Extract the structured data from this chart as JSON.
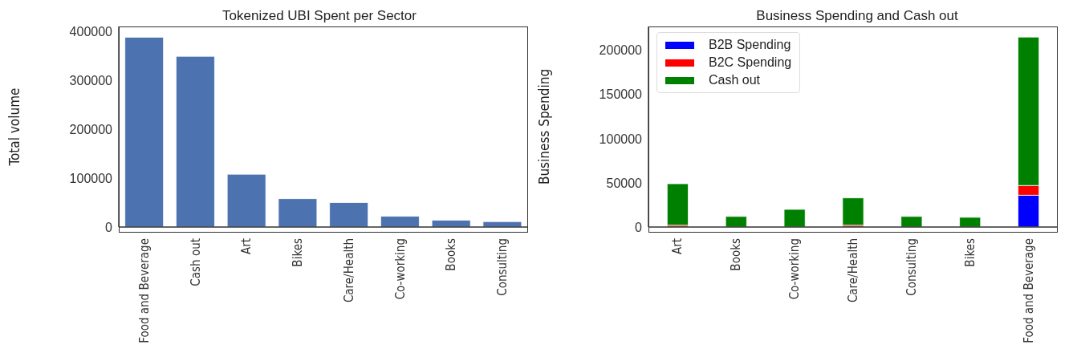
{
  "chart_data": [
    {
      "type": "bar",
      "title": "Tokenized UBI Spent per Sector",
      "ylabel": "Total volume",
      "categories": [
        "Food and Beverage",
        "Cash out",
        "Art",
        "Bikes",
        "Care/Health",
        "Co-working",
        "Books",
        "Consulting"
      ],
      "values": [
        388000,
        349000,
        108000,
        58000,
        50000,
        22000,
        14000,
        11000
      ],
      "color": "#4c72b0",
      "ylim": [
        0,
        410000
      ],
      "yticks": [
        0,
        100000,
        200000,
        300000,
        400000
      ],
      "grid": false
    },
    {
      "type": "bar",
      "title": "Business Spending and Cash out",
      "ylabel": "Business Spending",
      "categories": [
        "Art",
        "Books",
        "Co-working",
        "Care/Health",
        "Consulting",
        "Bikes",
        "Food and Beverage"
      ],
      "stacked": true,
      "series": [
        {
          "name": "B2B Spending",
          "color": "#0000ff",
          "values": [
            null,
            0,
            0,
            null,
            0,
            0,
            36000
          ]
        },
        {
          "name": "B2C Spending",
          "color": "#ff0000",
          "values": [
            2000,
            0,
            0,
            2000,
            0,
            0,
            11000
          ]
        },
        {
          "name": "Cash out",
          "color": "#008000",
          "values": [
            47000,
            12000,
            20000,
            31000,
            12000,
            11000,
            168000
          ]
        }
      ],
      "ylim": [
        0,
        227000
      ],
      "yticks": [
        0,
        50000,
        100000,
        150000,
        200000
      ],
      "legend": "top left",
      "grid": false
    }
  ]
}
